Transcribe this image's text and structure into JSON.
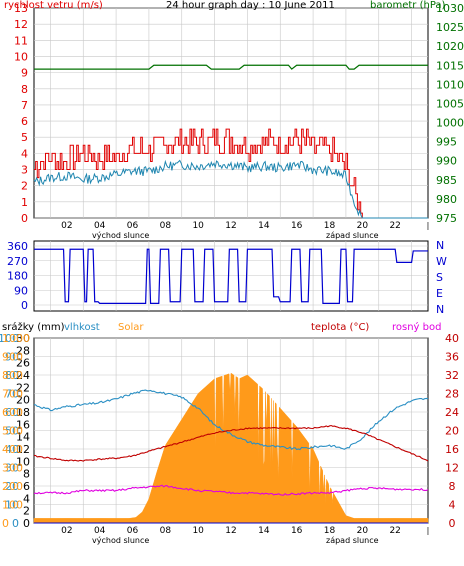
{
  "header": {
    "title": "24 hour graph day : 10 June 2011",
    "left_label": "rychlost vetru (m/s)",
    "right_label": "barometr (hPa)"
  },
  "x_axis": {
    "ticks": [
      "02",
      "04",
      "06",
      "08",
      "10",
      "12",
      "14",
      "16",
      "18",
      "20",
      "22"
    ],
    "sunrise_label": "východ slunce",
    "sunset_label": "západ slunce"
  },
  "bottom_header": {
    "rain_label": "srážky (mm)",
    "humidity_label": "vlhkost",
    "solar_label": "Solar",
    "temp_label": "teplota (°C)",
    "dew_label": "rosný bod"
  },
  "colors": {
    "wind_gust": "#e00000",
    "wind_avg": "#1f86b0",
    "pressure": "#007000",
    "direction": "#0000d0",
    "humidity": "#2a8fc4",
    "solar": "#ff9a1a",
    "temperature": "#c00000",
    "dewpoint": "#e000e0"
  },
  "chart_data": [
    {
      "type": "line",
      "x_range": [
        0,
        24
      ],
      "y_left": {
        "label": "rychlost vetru (m/s)",
        "range": [
          0,
          13
        ],
        "ticks": [
          "0",
          "1",
          "2",
          "3",
          "4",
          "5",
          "6",
          "7",
          "8",
          "9",
          "10",
          "11",
          "12",
          "13"
        ]
      },
      "y_right": {
        "label": "barometr (hPa)",
        "range": [
          975,
          1030
        ],
        "ticks": [
          "975",
          "980",
          "985",
          "990",
          "995",
          "1000",
          "1005",
          "1010",
          "1015",
          "1020",
          "1025",
          "1030"
        ]
      },
      "grid": true,
      "series": [
        {
          "name": "rychlost vetru",
          "axis": "left",
          "x": [
            0,
            1,
            2,
            3,
            4,
            5,
            6,
            7,
            8,
            9,
            10,
            11,
            12,
            13,
            14,
            15,
            16,
            17,
            18,
            19,
            19.5,
            20,
            21,
            22,
            23,
            24
          ],
          "values": [
            3.2,
            3.8,
            3.5,
            4.0,
            3.6,
            3.8,
            4.2,
            4.3,
            4.5,
            4.8,
            4.6,
            4.9,
            4.8,
            4.5,
            4.7,
            4.6,
            4.9,
            4.4,
            4.2,
            3.2,
            1.5,
            0,
            0,
            0,
            0,
            0
          ]
        },
        {
          "name": "prumer",
          "axis": "left",
          "x": [
            0,
            1,
            2,
            3,
            4,
            5,
            6,
            7,
            8,
            9,
            10,
            11,
            12,
            13,
            14,
            15,
            16,
            17,
            18,
            19,
            19.5,
            20,
            21,
            22,
            23,
            24
          ],
          "values": [
            2.2,
            2.5,
            2.6,
            2.4,
            2.5,
            2.7,
            2.9,
            2.9,
            3.2,
            3.3,
            3.2,
            3.4,
            3.3,
            3.1,
            3.2,
            3.1,
            3.3,
            3.0,
            2.9,
            2.6,
            1.0,
            0,
            0,
            0,
            0,
            0
          ]
        },
        {
          "name": "barometr",
          "axis": "right",
          "x": [
            0,
            7,
            7.3,
            10.5,
            10.8,
            12.5,
            12.8,
            15.5,
            15.7,
            16,
            19.0,
            19.2,
            19.5,
            19.8,
            24
          ],
          "values": [
            1014,
            1014,
            1015,
            1015,
            1014,
            1014,
            1015,
            1015,
            1014,
            1015,
            1015,
            1014,
            1014,
            1015,
            1015
          ]
        }
      ]
    },
    {
      "type": "line",
      "x_range": [
        0,
        24
      ],
      "y_left": {
        "range": [
          0,
          360
        ],
        "ticks": [
          "0",
          "90",
          "180",
          "270",
          "360"
        ]
      },
      "y_right": {
        "ticks": [
          "N",
          "E",
          "S",
          "W",
          "N"
        ]
      },
      "series": [
        {
          "name": "smer vetru",
          "x": [
            0,
            1.8,
            1.9,
            2.1,
            2.2,
            3.0,
            3.1,
            3.2,
            3.3,
            3.6,
            3.7,
            3.9,
            4.0,
            6.8,
            6.9,
            7.0,
            7.1,
            7.6,
            7.7,
            8.2,
            8.3,
            8.9,
            9.0,
            9.7,
            9.8,
            10.3,
            10.4,
            10.9,
            11.0,
            11.8,
            11.9,
            12.4,
            12.5,
            12.9,
            13.0,
            14.5,
            14.6,
            14.9,
            15.0,
            15.6,
            15.7,
            16.2,
            16.3,
            16.7,
            16.8,
            17.5,
            17.6,
            18.6,
            18.7,
            19.0,
            19.1,
            19.4,
            19.5,
            22.0,
            22.1,
            23.0,
            23.1,
            24
          ],
          "values": [
            340,
            340,
            20,
            20,
            340,
            340,
            20,
            20,
            340,
            340,
            20,
            20,
            10,
            10,
            340,
            340,
            10,
            10,
            340,
            340,
            20,
            20,
            340,
            340,
            20,
            20,
            340,
            340,
            20,
            20,
            340,
            340,
            20,
            20,
            340,
            340,
            50,
            50,
            20,
            20,
            340,
            340,
            20,
            20,
            340,
            340,
            10,
            10,
            340,
            340,
            20,
            20,
            340,
            340,
            260,
            260,
            330,
            330
          ]
        }
      ]
    },
    {
      "type": "line",
      "x_range": [
        0,
        24
      ],
      "y_axes": {
        "rain": {
          "label": "srážky (mm)",
          "range": [
            0,
            30
          ],
          "ticks": [
            "0",
            "2",
            "4",
            "6",
            "8",
            "10",
            "12",
            "14",
            "16",
            "18",
            "20",
            "22",
            "24",
            "26",
            "28",
            "30"
          ]
        },
        "humidity": {
          "label": "vlhkost",
          "range": [
            0,
            100
          ],
          "ticks": [
            "0",
            "10",
            "20",
            "30",
            "40",
            "50",
            "60",
            "70",
            "80",
            "90",
            "100"
          ]
        },
        "solar": {
          "label": "Solar",
          "range": [
            0,
            1000
          ],
          "ticks": [
            "0",
            "100",
            "200",
            "300",
            "400",
            "500",
            "600",
            "700",
            "800",
            "900",
            "1000"
          ]
        },
        "temperature": {
          "label": "teplota (°C)",
          "range": [
            0,
            40
          ],
          "ticks": [
            "0",
            "4",
            "8",
            "12",
            "16",
            "20",
            "24",
            "28",
            "32",
            "36",
            "40"
          ]
        }
      },
      "series": [
        {
          "name": "vlhkost",
          "axis": "humidity",
          "x": [
            0,
            1,
            2,
            3,
            4,
            5,
            6,
            7,
            8,
            9,
            10,
            11,
            12,
            13,
            14,
            15,
            16,
            17,
            18,
            19,
            20,
            21,
            22,
            23,
            23.5,
            24
          ],
          "values": [
            64,
            61,
            63,
            64,
            65,
            67,
            70,
            72,
            70,
            68,
            62,
            53,
            48,
            44,
            42,
            41,
            40,
            41,
            42,
            40,
            46,
            55,
            62,
            66,
            67,
            67
          ]
        },
        {
          "name": "Solar",
          "axis": "solar",
          "x": [
            0,
            5.8,
            6.2,
            6.6,
            7,
            7.5,
            8,
            9,
            10,
            11,
            12,
            12.5,
            13,
            14,
            15,
            16,
            17,
            17.5,
            18,
            18.5,
            19,
            19.5,
            20,
            24
          ],
          "values": [
            25,
            25,
            30,
            60,
            130,
            280,
            420,
            560,
            700,
            780,
            810,
            780,
            800,
            720,
            620,
            520,
            400,
            300,
            200,
            120,
            40,
            25,
            25,
            25
          ]
        },
        {
          "name": "teplota",
          "axis": "temperature",
          "x": [
            0,
            1,
            2,
            3,
            4,
            5,
            6,
            7,
            8,
            9,
            10,
            11,
            12,
            13,
            14,
            15,
            16,
            17,
            18,
            19,
            20,
            21,
            22,
            23,
            24
          ],
          "values": [
            14.5,
            14,
            13.5,
            13.5,
            13.8,
            14,
            14.5,
            15.5,
            16.5,
            17.5,
            18.5,
            19.5,
            20,
            20.5,
            20.5,
            20.5,
            20.5,
            20.5,
            21,
            20.5,
            19.5,
            18,
            16.5,
            15,
            13.5
          ]
        },
        {
          "name": "rosný bod",
          "axis": "temperature",
          "x": [
            0,
            1,
            2,
            3,
            4,
            5,
            6,
            7,
            8,
            9,
            10,
            11,
            12,
            13,
            14,
            15,
            16,
            17,
            18,
            19,
            20,
            21,
            22,
            23,
            24
          ],
          "values": [
            6.5,
            6.5,
            6.5,
            7,
            7,
            7,
            7.5,
            7.8,
            8,
            7.5,
            7,
            6.8,
            6.5,
            6.5,
            6.3,
            6.2,
            6.3,
            6.5,
            6.5,
            7,
            7.5,
            7.5,
            7.3,
            7.3,
            7.2
          ]
        },
        {
          "name": "srážky",
          "axis": "rain",
          "x": [
            0,
            24
          ],
          "values": [
            0,
            0
          ]
        }
      ]
    }
  ]
}
